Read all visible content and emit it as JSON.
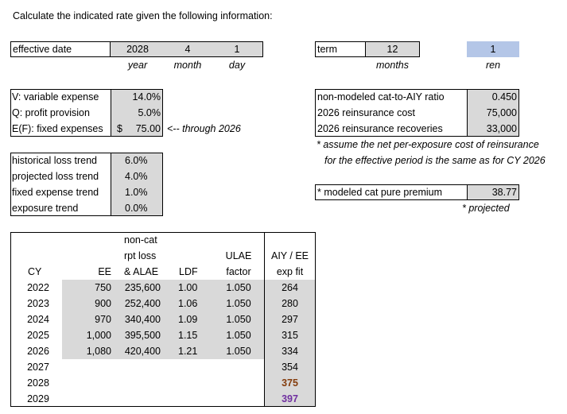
{
  "title": "Calculate the indicated rate given the following information:",
  "effective": {
    "label": "effective date",
    "year": "2028",
    "month": "4",
    "day": "1",
    "year_label": "year",
    "month_label": "month",
    "day_label": "day"
  },
  "term": {
    "label": "term",
    "value": "12",
    "unit": "months",
    "ren_value": "1",
    "ren_label": "ren"
  },
  "expenses": {
    "rows": [
      {
        "label": "V: variable expense",
        "value": "14.0%"
      },
      {
        "label": "Q: profit provision",
        "value": "5.0%"
      },
      {
        "label": "E(F): fixed expenses",
        "currency": "$",
        "value": "75.00"
      }
    ],
    "note": "<-- through 2026"
  },
  "trends": {
    "rows": [
      {
        "label": "historical loss trend",
        "value": "6.0%"
      },
      {
        "label": "projected loss trend",
        "value": "4.0%"
      },
      {
        "label": "fixed expense trend",
        "value": "1.0%"
      },
      {
        "label": "exposure trend",
        "value": "0.0%"
      }
    ]
  },
  "reinsurance": {
    "rows": [
      {
        "label": "non-modeled cat-to-AIY ratio",
        "value": "0.450"
      },
      {
        "label": "2026 reinsurance cost",
        "value": "75,000"
      },
      {
        "label": "2026 reinsurance recoveries",
        "value": "33,000"
      }
    ],
    "note_line1": "* assume the net per-exposure cost of reinsurance",
    "note_line2": "for the effective period is the same as for CY 2026"
  },
  "modeled_cat": {
    "label": "* modeled cat pure premium",
    "value": "38.77",
    "note": "* projected"
  },
  "data_table": {
    "headers": {
      "cy": "CY",
      "ee": "EE",
      "loss_1": "non-cat",
      "loss_2": "rpt loss",
      "loss_3": "& ALAE",
      "ldf": "LDF",
      "ulae_1": "ULAE",
      "ulae_2": "factor",
      "aiy_1": "AIY / EE",
      "aiy_2": "exp fit"
    },
    "rows": [
      {
        "cy": "2022",
        "ee": "750",
        "loss": "235,600",
        "ldf": "1.00",
        "ulae": "1.050",
        "aiy": "264"
      },
      {
        "cy": "2023",
        "ee": "900",
        "loss": "252,400",
        "ldf": "1.06",
        "ulae": "1.050",
        "aiy": "280"
      },
      {
        "cy": "2024",
        "ee": "970",
        "loss": "340,400",
        "ldf": "1.09",
        "ulae": "1.050",
        "aiy": "297"
      },
      {
        "cy": "2025",
        "ee": "1,000",
        "loss": "395,500",
        "ldf": "1.15",
        "ulae": "1.050",
        "aiy": "315"
      },
      {
        "cy": "2026",
        "ee": "1,080",
        "loss": "420,400",
        "ldf": "1.21",
        "ulae": "1.050",
        "aiy": "334"
      },
      {
        "cy": "2027",
        "ee": "",
        "loss": "",
        "ldf": "",
        "ulae": "",
        "aiy": "354"
      },
      {
        "cy": "2028",
        "ee": "",
        "loss": "",
        "ldf": "",
        "ulae": "",
        "aiy": "375"
      },
      {
        "cy": "2029",
        "ee": "",
        "loss": "",
        "ldf": "",
        "ulae": "",
        "aiy": "397"
      }
    ],
    "aiy_colors": {
      "2028": "#843c0c",
      "2029": "#7030a0"
    }
  }
}
